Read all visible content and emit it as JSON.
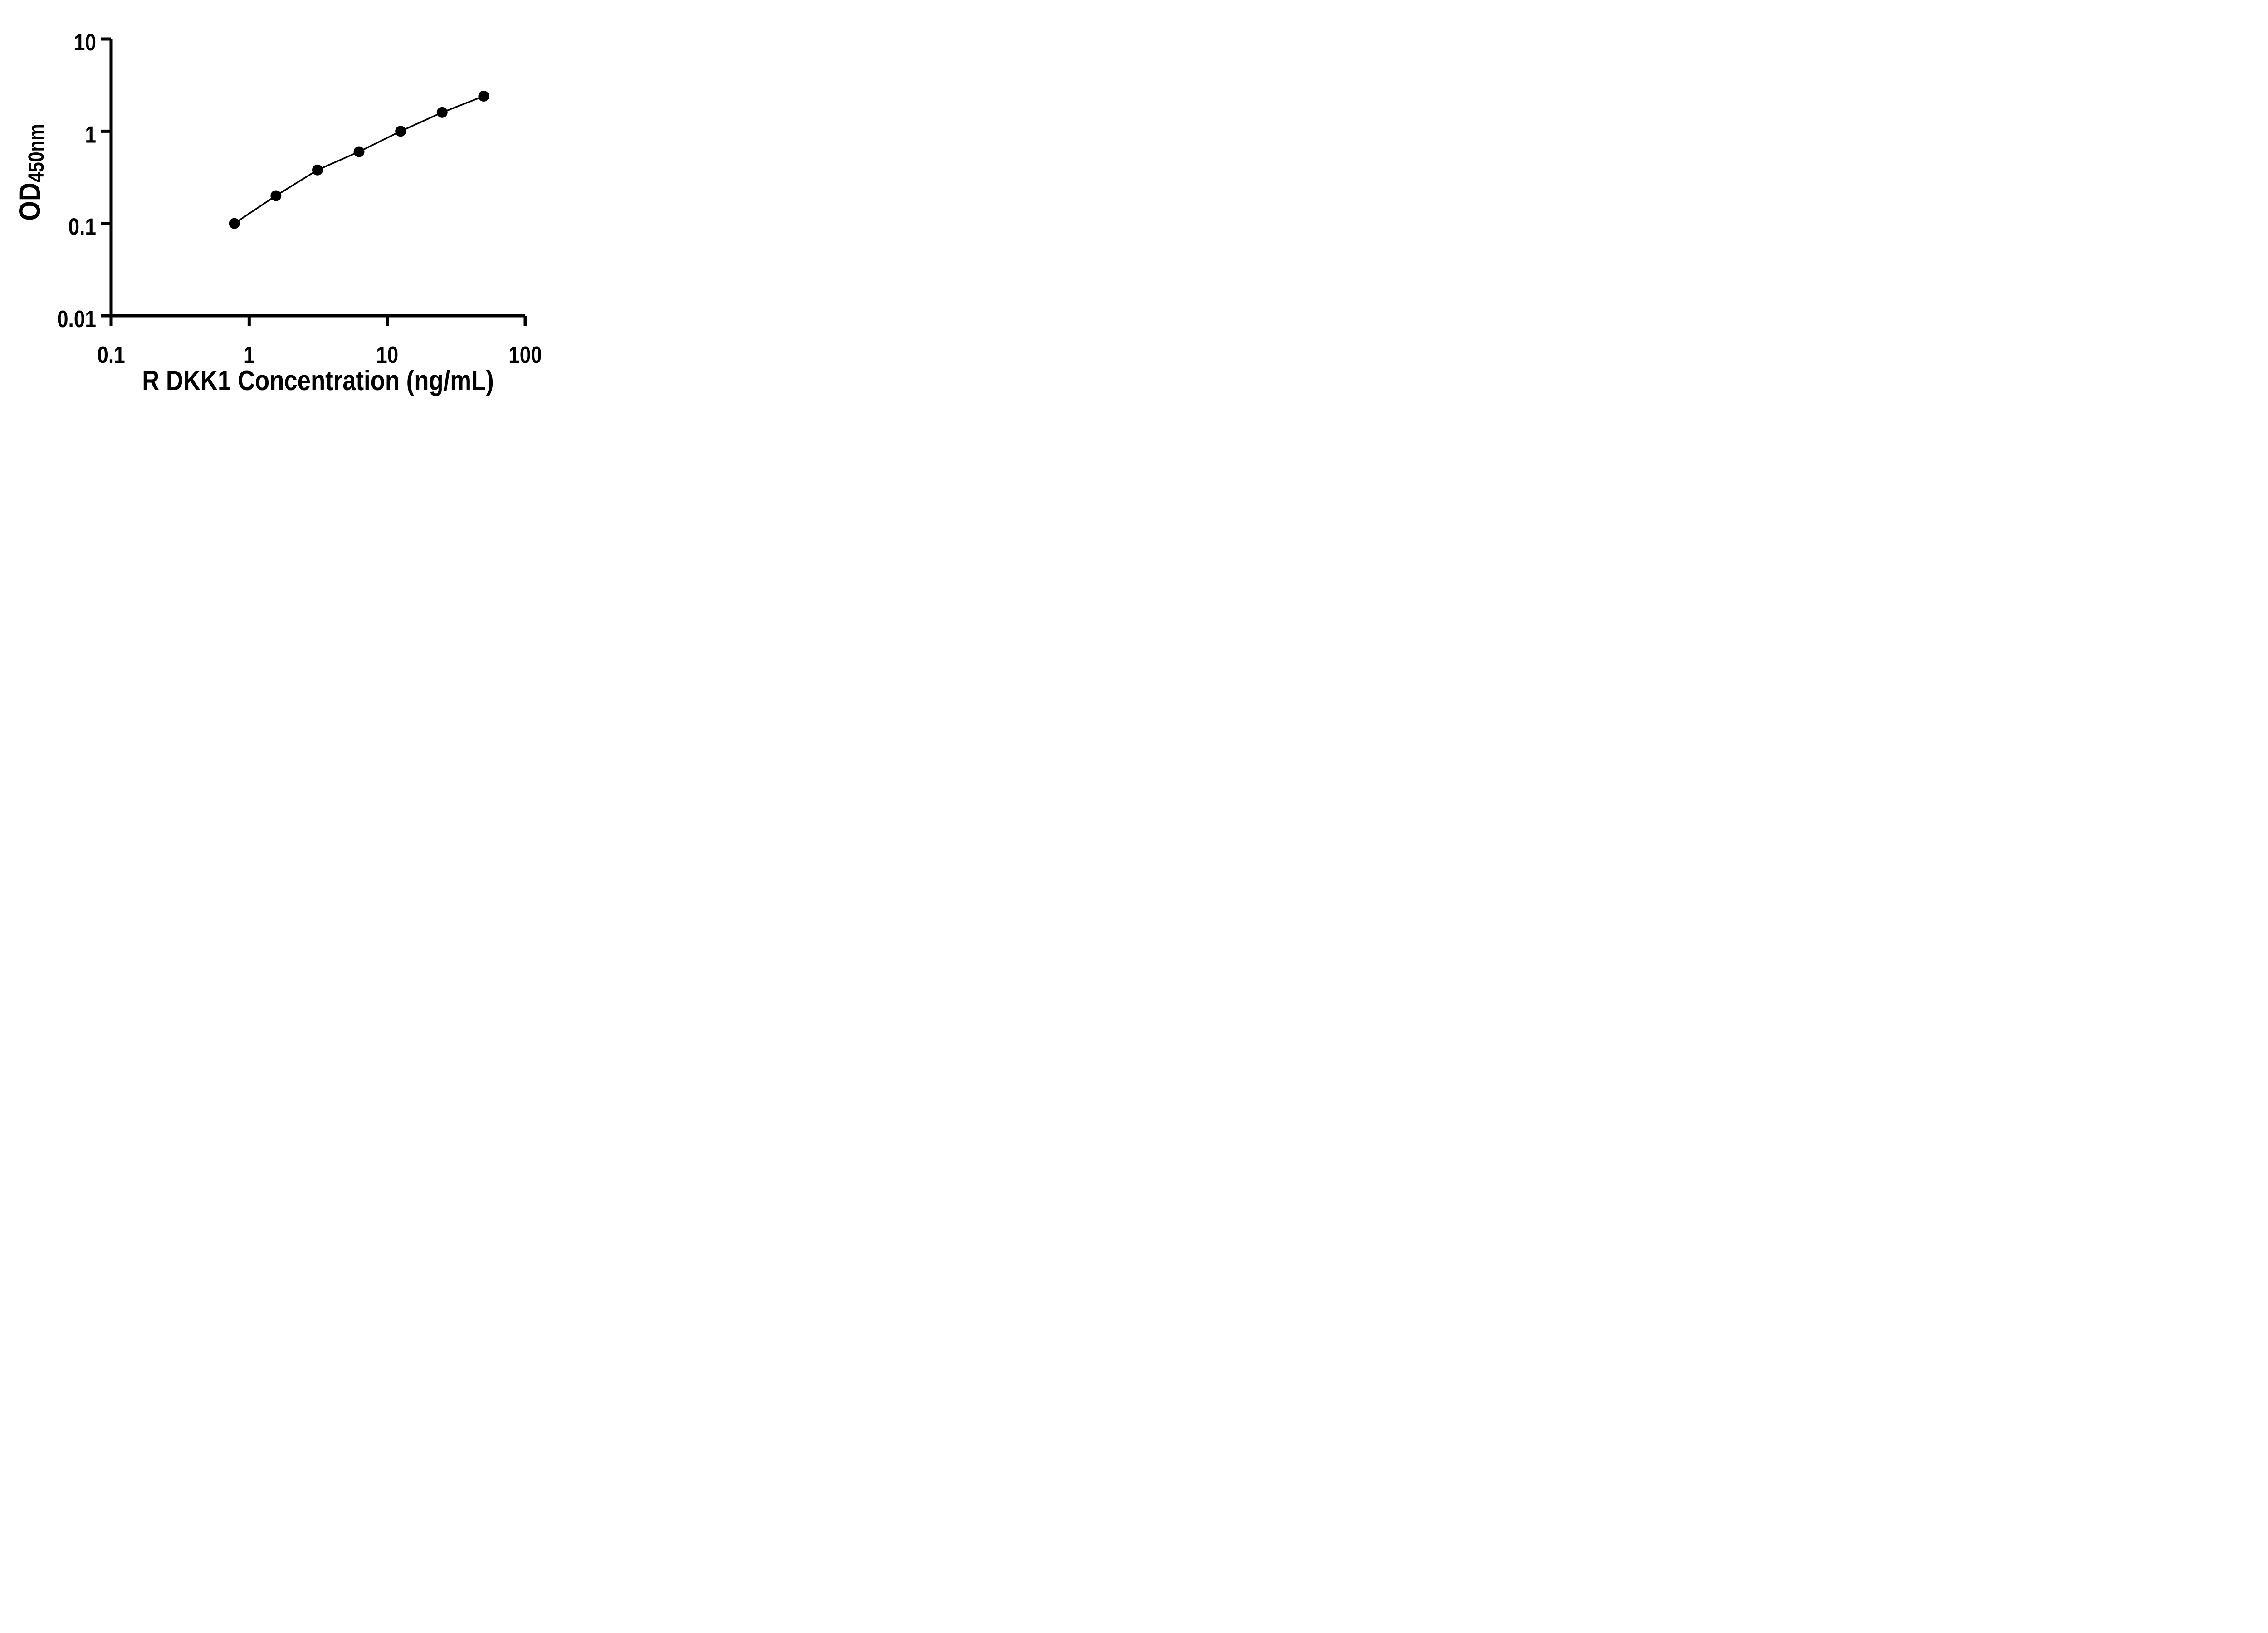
{
  "figure": {
    "background_color": "#ffffff",
    "ink_color": "#000000"
  },
  "chart_data": {
    "type": "line",
    "title": "",
    "xlabel": "R DKK1 Concentration (ng/mL)",
    "ylabel_main": "OD",
    "ylabel_sub": "450nm",
    "x_scale": "log10",
    "y_scale": "log10",
    "xlim": [
      0.1,
      100
    ],
    "ylim": [
      0.01,
      10
    ],
    "grid": false,
    "legend": false,
    "x_ticks": [
      {
        "value": 0.1,
        "label": "0.1"
      },
      {
        "value": 1,
        "label": "1"
      },
      {
        "value": 10,
        "label": "10"
      },
      {
        "value": 100,
        "label": "100"
      }
    ],
    "y_ticks": [
      {
        "value": 0.01,
        "label": "0.01"
      },
      {
        "value": 0.1,
        "label": "0.1"
      },
      {
        "value": 1,
        "label": "1"
      },
      {
        "value": 10,
        "label": "10"
      }
    ],
    "series": [
      {
        "marker": "circle",
        "line_style": "solid",
        "color": "#000000",
        "points": [
          {
            "x": 0.781,
            "y": 0.1
          },
          {
            "x": 1.563,
            "y": 0.2
          },
          {
            "x": 3.125,
            "y": 0.38
          },
          {
            "x": 6.25,
            "y": 0.6
          },
          {
            "x": 12.5,
            "y": 1.0
          },
          {
            "x": 25,
            "y": 1.6
          },
          {
            "x": 50,
            "y": 2.4
          }
        ]
      }
    ]
  }
}
